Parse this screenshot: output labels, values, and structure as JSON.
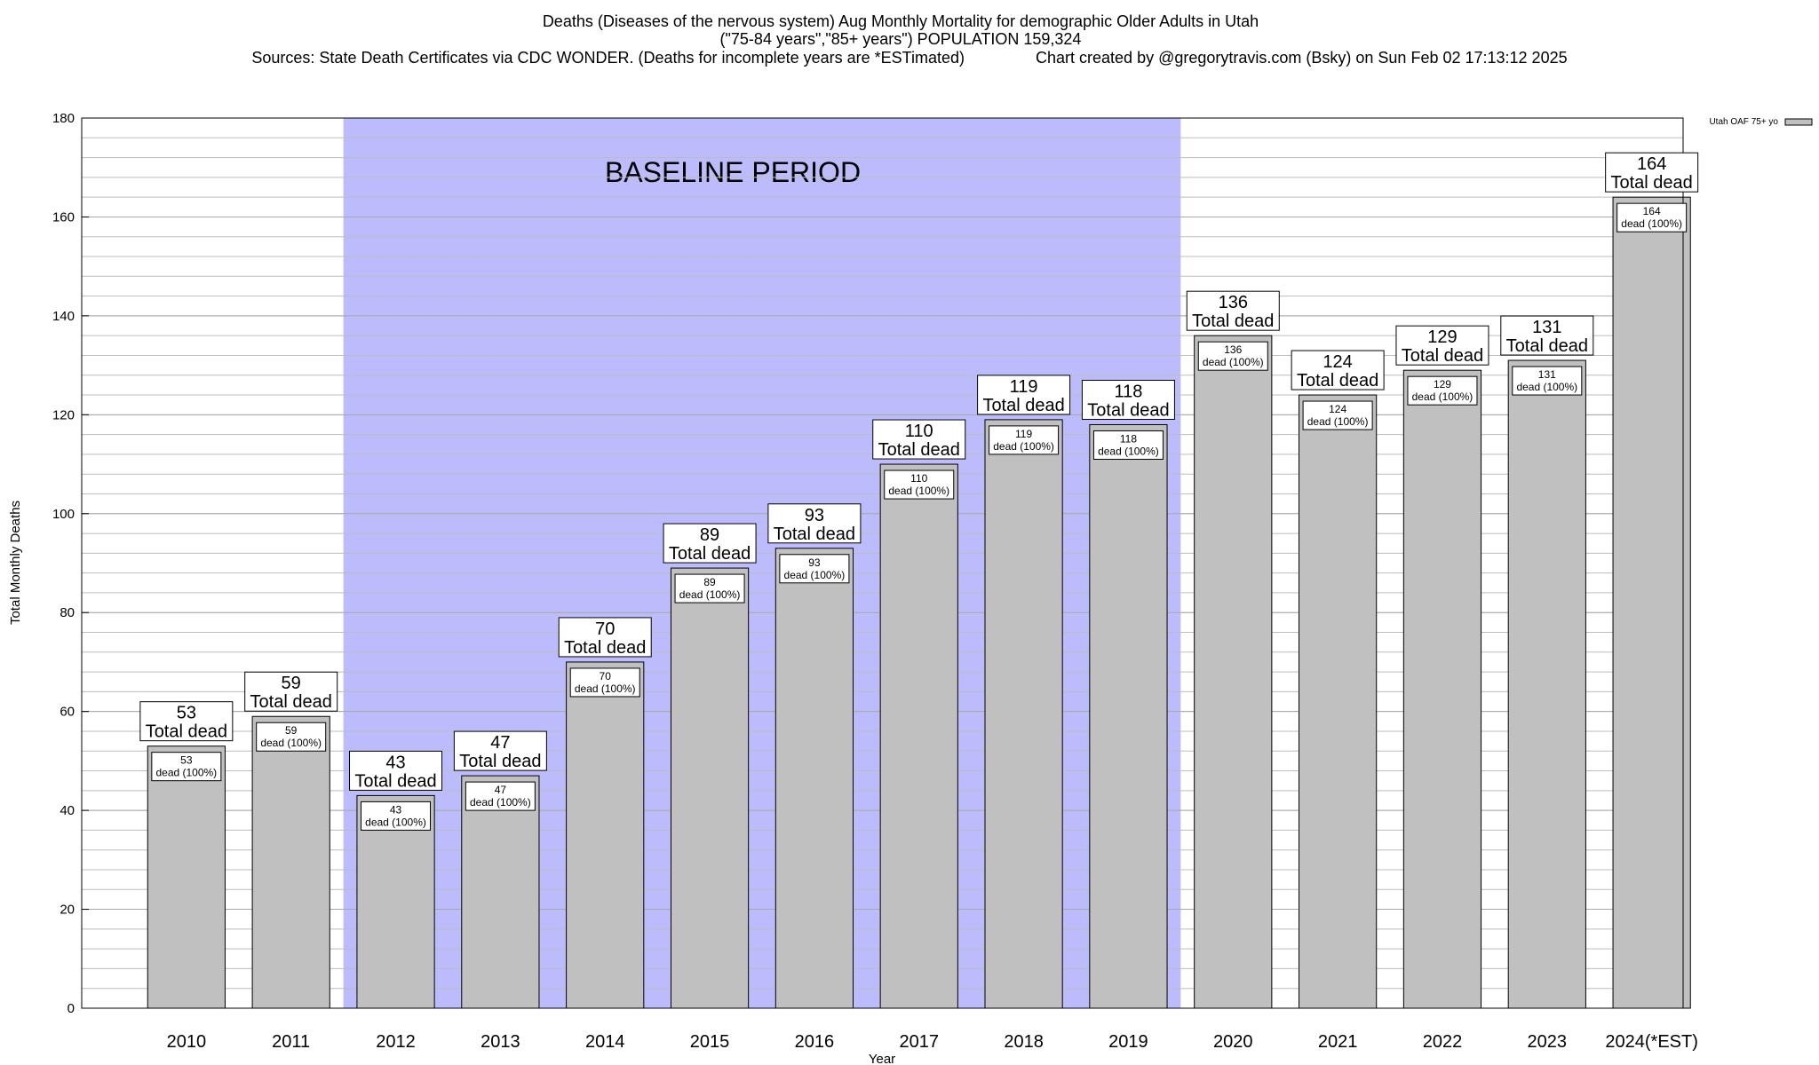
{
  "header": {
    "title_line1": "Deaths (Diseases of the nervous system) Aug Monthly Mortality for demographic Older Adults in Utah",
    "title_line2": "(\"75-84 years\",\"85+ years\") POPULATION 159,324",
    "sources": "Sources: State Death Certificates via CDC WONDER. (Deaths for incomplete years are *ESTimated)",
    "credit": "Chart created by @gregorytravis.com (Bsky) on Sun Feb 02 17:13:12 2025"
  },
  "chart_data": {
    "type": "bar",
    "xlabel": "Year",
    "ylabel": "Total Monthly Deaths",
    "ylim": [
      0,
      180
    ],
    "yticks": [
      0,
      20,
      40,
      60,
      80,
      100,
      120,
      140,
      160,
      180
    ],
    "minor_grid_step": 4,
    "grid": true,
    "categories": [
      "2010",
      "2011",
      "2012",
      "2013",
      "2014",
      "2015",
      "2016",
      "2017",
      "2018",
      "2019",
      "2020",
      "2021",
      "2022",
      "2023",
      "2024(*EST)"
    ],
    "series": [
      {
        "name": "Utah OAF 75+ yo",
        "values": [
          53,
          59,
          43,
          47,
          70,
          89,
          93,
          110,
          119,
          118,
          136,
          124,
          129,
          131,
          164
        ]
      }
    ],
    "top_label_suffix": "Total dead",
    "inner_label_suffix": "dead (100%)",
    "baseline_period": {
      "label": "BASELINE PERIOD",
      "from": "2012",
      "to": "2019"
    },
    "legend": {
      "placement": "top-right",
      "label": "Utah OAF 75+ yo"
    },
    "colors": {
      "bar": "#c0c0c0",
      "baseline": "#bcbcfc",
      "grid": "#bdbdbd"
    }
  }
}
